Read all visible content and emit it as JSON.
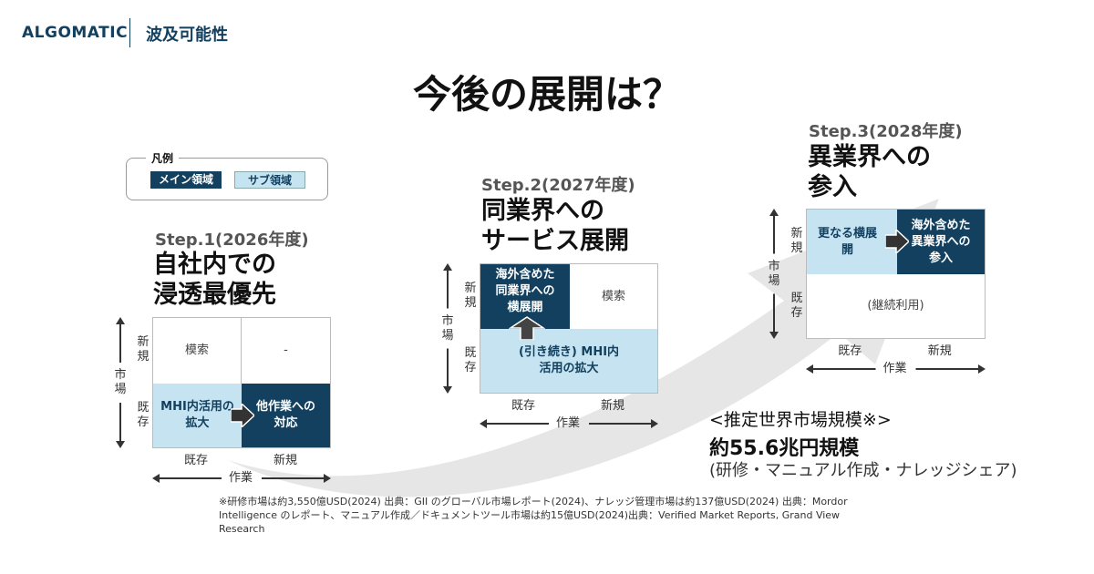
{
  "header": {
    "logo": "ALGOMATIC",
    "section": "波及可能性"
  },
  "title": "今後の展開は？",
  "colors": {
    "main": "#12405e",
    "sub": "#c5e3f1"
  },
  "legend": {
    "label": "凡例",
    "main": "メイン領域",
    "sub": "サブ領域"
  },
  "axes": {
    "market": "市場",
    "work": "作業",
    "new": "新規",
    "existing": "既存"
  },
  "steps": [
    {
      "label": "Step.1(2026年度)",
      "heading1": "自社内での",
      "heading2": "浸透最優先",
      "cells": {
        "new_existing": "模索",
        "new_new": "-",
        "existing_existing": "MHI内活用の拡大",
        "existing_new": "他作業への対応"
      }
    },
    {
      "label": "Step.2(2027年度)",
      "heading1": "同業界への",
      "heading2": "サービス展開",
      "cells": {
        "new_existing": "海外含めた同業界への横展開",
        "new_new": "模索",
        "existing": "(引き続き) MHI内活用の拡大"
      }
    },
    {
      "label": "Step.3(2028年度)",
      "heading1": "異業界への",
      "heading2": "参入",
      "cells": {
        "new_existing": "更なる横展開",
        "new_new": "海外含めた異業界への参入",
        "existing": "(継続利用)"
      }
    }
  ],
  "market": {
    "label": "<推定世界市場規模※>",
    "value": "約55.6兆円規模",
    "scope": "(研修・マニュアル作成・ナレッジシェア)"
  },
  "footnote": {
    "line1": "※研修市場は約3,550億USD(2024) 出典：GII のグローバル市場レポート(2024)、ナレッジ管理市場は約137億USD(2024) 出典：Mordor",
    "line2": "Intelligence のレポート、マニュアル作成／ドキュメントツール市場は約15億USD(2024)出典：Verified Market Reports, Grand View Research"
  }
}
